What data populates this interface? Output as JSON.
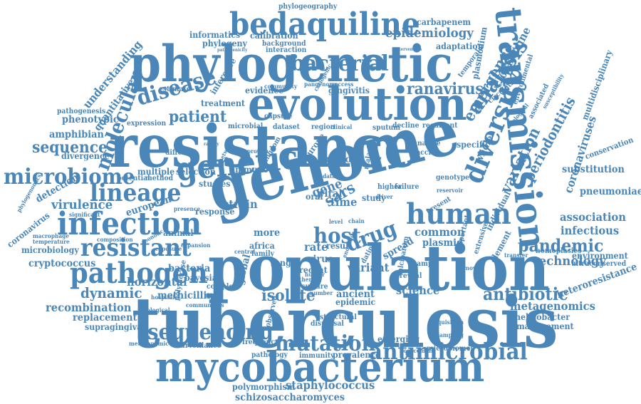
{
  "words": [
    "tuberculosis",
    "population",
    "resistance",
    "genome",
    "phylogenetic",
    "evolution",
    "transmission",
    "mycobacterium",
    "bedaquiline",
    "genetic",
    "human",
    "infection",
    "pathogen",
    "diversity",
    "antimicrobial",
    "lineage",
    "resistant",
    "microbiome",
    "mutation",
    "sequencing",
    "bacterial",
    "analysis",
    "disease",
    "molecular",
    "host",
    "drug",
    "antibiotic",
    "pandemic",
    "ranavirus",
    "patient",
    "epidemiology",
    "variation",
    "periodontitis",
    "emergence",
    "isolate",
    "sequence",
    "dynamic",
    "infectious",
    "technology",
    "recombination",
    "metagenomics",
    "association",
    "pneumoniae",
    "virulence",
    "coronaviruses",
    "clofazimine",
    "staphylococcus",
    "schizosaccharomyces",
    "polymorphism",
    "phenotypic",
    "amphibian",
    "understanding",
    "quantitative",
    "informatics",
    "calibration",
    "phylogeny",
    "strain",
    "science",
    "common",
    "plasmid",
    "variant",
    "heteroresistance",
    "cryptococcus",
    "microbiology",
    "replacement",
    "supragingival",
    "horizontal",
    "bacteria",
    "methicillin",
    "european",
    "detection",
    "coronavirus",
    "divergence",
    "treatment",
    "evidence",
    "gingivitis",
    "adaptation",
    "carbapenem",
    "phylogeography",
    "multiple",
    "selection",
    "immune",
    "studies",
    "potential",
    "method",
    "response",
    "animal",
    "bayesian",
    "ancient",
    "epidemic",
    "culture",
    "emerging",
    "prevalence",
    "surveillance",
    "frequency",
    "helicobacter",
    "management",
    "environment",
    "ultraconserved",
    "substitution",
    "multidisciplinary",
    "conservation",
    "homoplasies",
    "specific",
    "whole",
    "individual",
    "element",
    "environmental",
    "associated",
    "circulation",
    "pathogenesis",
    "expression",
    "estimate",
    "inference",
    "background",
    "interaction",
    "falciparum",
    "vaccine",
    "analyse",
    "recurrent",
    "decline",
    "sputum",
    "region",
    "dataset",
    "microbial",
    "capsule",
    "community",
    "rate",
    "result",
    "time",
    "study",
    "higher",
    "failure",
    "viral",
    "oral",
    "virus",
    "range",
    "recent",
    "spread",
    "reveal",
    "sample",
    "present",
    "genotype",
    "more",
    "africa",
    "family",
    "different",
    "central",
    "global",
    "complex",
    "dispersal",
    "structural",
    "pathology",
    "immunity",
    "nosocomial",
    "microbiomes",
    "metagenomic",
    "communities",
    "sampling",
    "turnover",
    "acquisition",
    "phylogenomics",
    "macrophage",
    "temperature",
    "significant",
    "presence",
    "composition",
    "expansion",
    "zoonotic",
    "exposure",
    "biological",
    "hospital",
    "polymerase",
    "observed",
    "important",
    "extensive",
    "plasmodium",
    "gatherer",
    "hunter",
    "temporal",
    "susceptibility",
    "rapidly",
    "protein",
    "kingdom",
    "europe",
    "major",
    "malaria",
    "clinical",
    "data",
    "level",
    "chain",
    "dating",
    "driver",
    "reservoir",
    "number",
    "network",
    "pathogenicity",
    "intervention",
    "success",
    "pangenome",
    "cariogenic",
    "endemic",
    "transfer",
    "ecological",
    "sars",
    "gene"
  ]
}
